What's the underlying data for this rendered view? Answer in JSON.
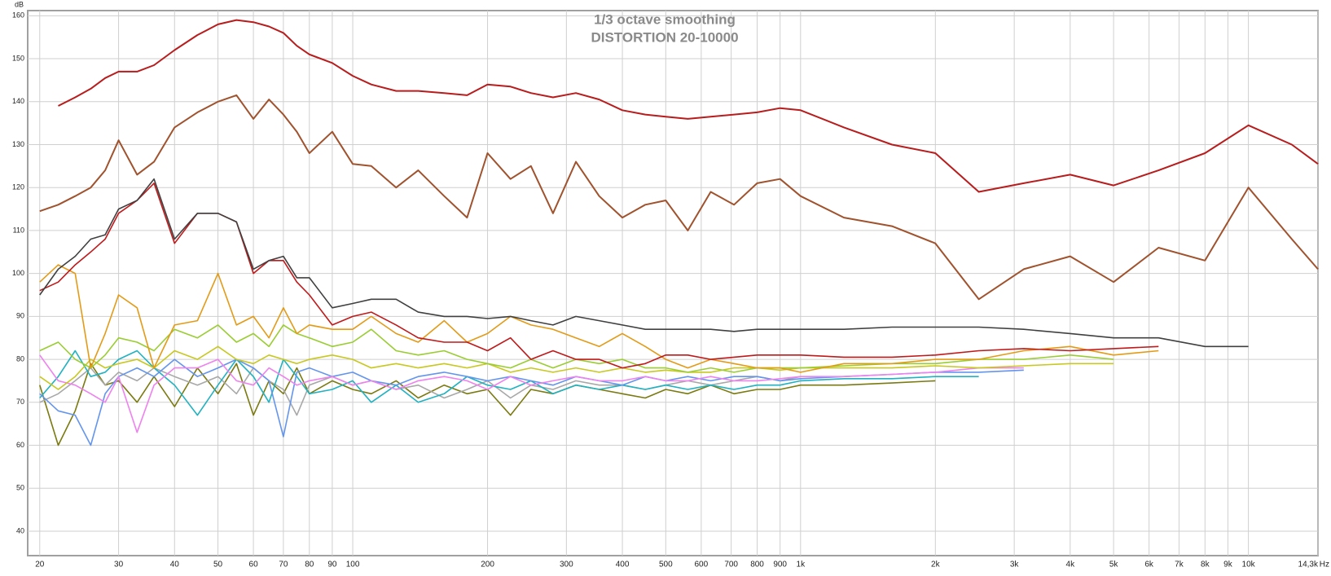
{
  "chart_data": {
    "type": "line",
    "title": "1/3 octave smoothing",
    "subtitle": "DISTORTION 20-10000",
    "y_unit": "dB",
    "x_unit": "Hz",
    "log_x": true,
    "grid": true,
    "xlim": [
      18.8,
      14300
    ],
    "ylim": [
      34.3,
      161.2
    ],
    "yticks": [
      40,
      50,
      60,
      70,
      80,
      90,
      100,
      110,
      120,
      130,
      140,
      150,
      160
    ],
    "xticks": [
      20,
      30,
      40,
      50,
      60,
      70,
      80,
      90,
      100,
      200,
      300,
      400,
      500,
      600,
      700,
      800,
      900,
      {
        "value": 1000,
        "label": "1k"
      },
      {
        "value": 2000,
        "label": "2k"
      },
      {
        "value": 3000,
        "label": "3k"
      },
      {
        "value": 4000,
        "label": "4k"
      },
      {
        "value": 5000,
        "label": "5k"
      },
      {
        "value": 6000,
        "label": "6k"
      },
      {
        "value": 7000,
        "label": "7k"
      },
      {
        "value": 8000,
        "label": "8k"
      },
      {
        "value": 9000,
        "label": "9k"
      },
      {
        "value": 10000,
        "label": "10k"
      },
      {
        "value": 14300,
        "label": "14,3k"
      }
    ],
    "x": [
      20,
      22,
      24,
      26,
      28,
      30,
      33,
      36,
      40,
      45,
      50,
      55,
      60,
      65,
      70,
      75,
      80,
      90,
      100,
      110,
      125,
      140,
      160,
      180,
      200,
      225,
      250,
      280,
      315,
      355,
      400,
      450,
      500,
      560,
      630,
      710,
      800,
      900,
      1000,
      1250,
      1600,
      2000,
      2500,
      3150,
      4000,
      5000,
      6300,
      8000,
      10000,
      12500,
      14300
    ],
    "series": [
      {
        "color": "#b81c1c",
        "values": [
          null,
          139,
          141,
          143,
          145.5,
          147,
          147,
          148.5,
          152,
          155.5,
          158,
          159,
          158.5,
          157.5,
          156,
          153,
          151,
          149,
          146,
          144,
          142.5,
          142.5,
          142,
          141.5,
          144,
          143.5,
          142,
          141,
          142,
          140.5,
          138,
          137,
          136.5,
          136,
          136.5,
          137,
          137.5,
          138.5,
          138,
          134,
          130,
          128,
          119,
          121,
          123,
          120.5,
          124,
          128,
          134.5,
          130,
          125.5
        ]
      },
      {
        "color": "#a0522d",
        "values": [
          114.5,
          116,
          118,
          120,
          124,
          131,
          123,
          126,
          134,
          137.5,
          140,
          141.5,
          136,
          140.5,
          137,
          133,
          128,
          133,
          125.5,
          125,
          120,
          124,
          118,
          113,
          128,
          122,
          125,
          114,
          126,
          118,
          113,
          116,
          117,
          110,
          119,
          116,
          121,
          122,
          118,
          113,
          111,
          107,
          94,
          101,
          104,
          98,
          106,
          103,
          120,
          108,
          101
        ]
      },
      {
        "color": "#404040",
        "values": [
          95,
          101,
          104,
          108,
          109,
          115,
          117,
          122,
          108,
          114,
          114,
          112,
          101,
          103,
          104,
          99,
          99,
          92,
          93,
          94,
          94,
          91,
          90,
          90,
          89.5,
          90,
          89,
          88,
          90,
          89,
          88,
          87,
          87,
          87,
          87,
          86.5,
          87,
          87,
          87,
          87,
          87.5,
          87.5,
          87.5,
          87,
          86,
          85,
          85,
          83,
          83,
          null,
          null
        ]
      },
      {
        "color": "#c0191a",
        "values": [
          96,
          98,
          102,
          105,
          108,
          114,
          117,
          121,
          107,
          114,
          114,
          112,
          100,
          103,
          103,
          98,
          95,
          88,
          90,
          91,
          88,
          85,
          84,
          84,
          82,
          85,
          80,
          82,
          80,
          80,
          78,
          79,
          81,
          81,
          80,
          80.5,
          81,
          81,
          81,
          80.5,
          80.5,
          81,
          82,
          82.5,
          82,
          82.5,
          83,
          null,
          null,
          null,
          null
        ]
      },
      {
        "color": "#e39b17",
        "values": [
          98,
          102,
          100,
          78,
          86,
          95,
          92,
          78,
          88,
          89,
          100,
          88,
          90,
          85,
          92,
          86,
          88,
          87,
          87,
          90,
          86,
          84,
          89,
          84,
          86,
          90,
          88,
          87,
          85,
          83,
          86,
          83,
          80,
          78,
          80,
          79,
          78,
          78,
          77,
          79,
          79,
          80,
          80,
          82,
          83,
          81,
          82,
          null,
          null,
          null,
          null
        ]
      },
      {
        "color": "#9acd32",
        "values": [
          82,
          84,
          80,
          78,
          81,
          85,
          84,
          82,
          87,
          85,
          88,
          84,
          86,
          83,
          88,
          86,
          85,
          83,
          84,
          87,
          82,
          81,
          82,
          80,
          79,
          78,
          80,
          78,
          80,
          79,
          80,
          78,
          78,
          77,
          78,
          77,
          78,
          78,
          78,
          78.5,
          79,
          79,
          80,
          80,
          81,
          80,
          null,
          null,
          null,
          null,
          null
        ]
      },
      {
        "color": "#c8c820",
        "values": [
          76,
          73,
          76,
          80,
          78,
          79,
          80,
          78,
          82,
          80,
          83,
          80,
          79,
          81,
          80,
          79,
          80,
          81,
          80,
          78,
          79,
          78,
          79,
          78,
          79,
          77,
          78,
          77,
          78,
          77,
          78,
          77,
          77.5,
          77,
          77,
          78,
          78,
          77.5,
          78,
          78,
          78,
          78.5,
          78,
          78.5,
          79,
          79,
          null,
          null,
          null,
          null,
          null
        ]
      },
      {
        "color": "#ee82ee",
        "values": [
          81,
          75,
          74,
          72,
          70,
          76,
          63,
          74,
          78,
          78,
          80,
          75,
          74,
          78,
          76,
          74,
          75,
          76,
          74,
          75,
          73,
          75,
          76,
          75,
          73,
          76,
          74,
          75,
          76,
          75,
          75,
          76,
          75,
          75,
          76,
          75,
          75,
          75.5,
          76,
          76,
          76.5,
          77,
          78,
          78,
          null,
          null,
          null,
          null,
          null,
          null,
          null
        ]
      },
      {
        "color": "#6495ed",
        "values": [
          72,
          68,
          67,
          60,
          72,
          76,
          78,
          76,
          80,
          76,
          78,
          80,
          78,
          75,
          62,
          77,
          78,
          76,
          77,
          75,
          74,
          76,
          77,
          76,
          75,
          76,
          75,
          74,
          76,
          75,
          74,
          76,
          75,
          76,
          75,
          76,
          76,
          75,
          75.5,
          76,
          76.5,
          77,
          77,
          77.5,
          null,
          null,
          null,
          null,
          null,
          null,
          null
        ]
      },
      {
        "color": "#20b2c0",
        "values": [
          71,
          76,
          82,
          76,
          77,
          80,
          82,
          78,
          74,
          67,
          74,
          80,
          76,
          70,
          80,
          76,
          72,
          73,
          75,
          70,
          74,
          70,
          72,
          76,
          74,
          73,
          75,
          72,
          74,
          73,
          74,
          73,
          74,
          73,
          74,
          73,
          74,
          74,
          75,
          75.5,
          75.5,
          76,
          76,
          null,
          null,
          null,
          null,
          null,
          null,
          null,
          null
        ]
      },
      {
        "color": "#a8a8a8",
        "values": [
          70,
          72,
          75,
          78,
          74,
          77,
          75,
          78,
          76,
          74,
          76,
          72,
          78,
          75,
          73,
          67,
          74,
          76,
          74,
          75,
          73,
          74,
          71,
          73,
          75,
          71,
          74,
          73,
          75,
          74,
          74,
          73,
          74,
          75,
          74,
          75,
          76,
          75,
          76,
          null,
          null,
          null,
          null,
          null,
          null,
          null,
          null,
          null,
          null,
          null,
          null
        ]
      },
      {
        "color": "#7a7a10",
        "values": [
          74,
          60,
          68,
          79,
          74,
          75,
          70,
          76,
          69,
          78,
          72,
          79,
          67,
          75,
          72,
          78,
          72,
          75,
          73,
          72,
          75,
          71,
          74,
          72,
          73,
          67,
          73,
          72,
          74,
          73,
          72,
          71,
          73,
          72,
          74,
          72,
          73,
          73,
          74,
          74,
          74.5,
          75,
          null,
          null,
          null,
          null,
          null,
          null,
          null,
          null,
          null
        ]
      }
    ]
  }
}
